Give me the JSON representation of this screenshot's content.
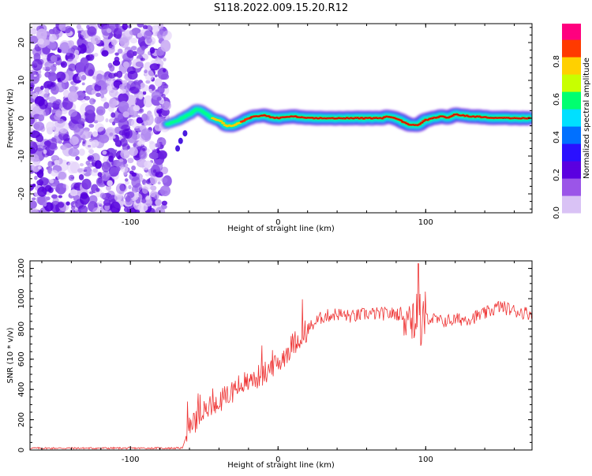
{
  "title": "S118.2022.009.15.20.R12",
  "colors": {
    "snr_line": "#ee3333",
    "axis": "#000000",
    "colormap": [
      "#ffffff",
      "#d9c2f5",
      "#9b55e8",
      "#5b00e0",
      "#2a10ff",
      "#0070ff",
      "#00e0ff",
      "#00ff70",
      "#c8ff00",
      "#ffd000",
      "#ff3a00",
      "#ff007f"
    ]
  },
  "chart_data": [
    {
      "type": "heatmap",
      "xlabel": "Height of straight line (km)",
      "ylabel": "Frequency (Hz)",
      "xlim": [
        -168,
        172
      ],
      "ylim": [
        -25,
        25
      ],
      "xticks": [
        -100,
        0,
        100
      ],
      "yticks": [
        -20,
        -10,
        0,
        10,
        20
      ],
      "grid": false,
      "colorbar": {
        "label": "Normalized spectral amplitude",
        "range": [
          0,
          1
        ],
        "ticks": [
          "0.0",
          "0.2",
          "0.4",
          "0.6",
          "0.8"
        ]
      },
      "noise_region_x": [
        -168,
        -75
      ],
      "ridge": {
        "x": [
          -75,
          -70,
          -65,
          -60,
          -55,
          -50,
          -45,
          -40,
          -35,
          -30,
          -25,
          -20,
          -15,
          -10,
          -5,
          0,
          10,
          20,
          40,
          60,
          70,
          75,
          80,
          85,
          90,
          95,
          100,
          105,
          110,
          115,
          120,
          130,
          140,
          150,
          160,
          170
        ],
        "freq": [
          -1.5,
          -1,
          0,
          1,
          2.5,
          1.5,
          0,
          -0.5,
          -2,
          -2,
          -1,
          0,
          0.5,
          0.8,
          0.3,
          0,
          0.5,
          0,
          0,
          0,
          0,
          0.5,
          0,
          -1,
          -1.8,
          -1.8,
          -0.5,
          0,
          0.5,
          0.2,
          1,
          0.5,
          0.3,
          0,
          0,
          0
        ],
        "amplitude": [
          0.35,
          0.45,
          0.5,
          0.55,
          0.5,
          0.55,
          0.6,
          0.7,
          0.75,
          0.8,
          0.85,
          0.9,
          0.9,
          0.92,
          0.95,
          1,
          1,
          1,
          1,
          1,
          1,
          0.95,
          1,
          1,
          0.95,
          0.95,
          1,
          1,
          1,
          1,
          0.95,
          0.95,
          1,
          1,
          1,
          1
        ]
      }
    },
    {
      "type": "line",
      "xlabel": "Height of straight line (km)",
      "ylabel": "SNR (10 * v/v)",
      "xlim": [
        -168,
        172
      ],
      "ylim": [
        0,
        1250
      ],
      "xticks": [
        -100,
        0,
        100
      ],
      "yticks": [
        0,
        200,
        400,
        600,
        800,
        1000,
        1200
      ],
      "grid": false,
      "series": [
        {
          "x": [
            -168,
            -150,
            -130,
            -110,
            -90,
            -75,
            -65,
            -60,
            -55,
            -50,
            -45,
            -40,
            -35,
            -30,
            -25,
            -20,
            -10,
            0,
            10,
            20,
            30,
            40,
            50,
            60,
            70,
            80,
            90,
            95,
            100,
            110,
            120,
            130,
            140,
            150,
            160,
            172
          ],
          "values": [
            12,
            12,
            12,
            12,
            12,
            12,
            12,
            150,
            200,
            250,
            300,
            320,
            350,
            400,
            430,
            450,
            500,
            570,
            700,
            800,
            880,
            900,
            880,
            900,
            900,
            900,
            900,
            850,
            880,
            850,
            860,
            870,
            900,
            950,
            920,
            900
          ]
        }
      ]
    }
  ]
}
